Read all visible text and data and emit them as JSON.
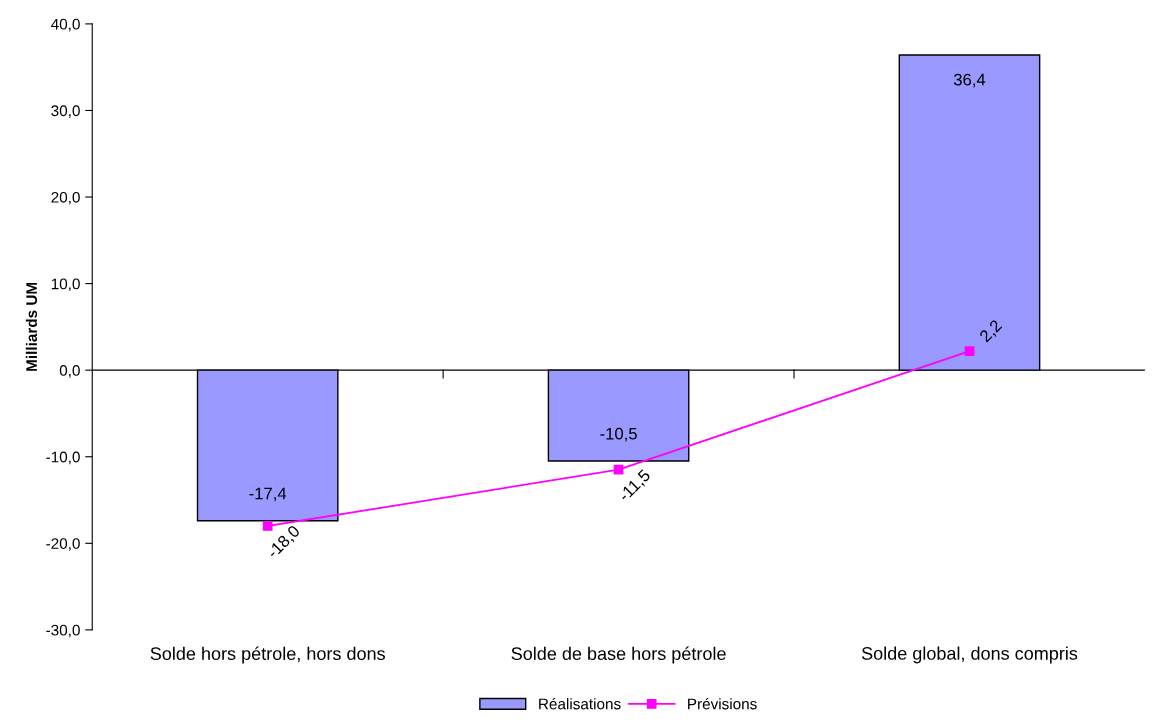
{
  "chart_data": {
    "type": "bar",
    "ylabel": "Milliards UM",
    "categories": [
      "Solde hors pétrole, hors dons",
      "Solde de base hors pétrole",
      "Solde global, dons compris"
    ],
    "series": [
      {
        "name": "Réalisations",
        "color": "#9999ff",
        "values": [
          -17.4,
          -10.5,
          36.4
        ],
        "value_labels": [
          "-17,4",
          "-10,5",
          "36,4"
        ]
      },
      {
        "name": "Prévisions",
        "type": "line",
        "color": "#ff00ff",
        "marker": "square",
        "values": [
          -18.0,
          -11.5,
          2.2
        ],
        "value_labels": [
          "-18,0",
          "-11,5",
          "2,2"
        ]
      }
    ],
    "ylim": [
      -30,
      40
    ],
    "yticks": [
      {
        "value": -30,
        "label": "-30,0"
      },
      {
        "value": -20,
        "label": "-20,0"
      },
      {
        "value": -10,
        "label": "-10,0"
      },
      {
        "value": 0,
        "label": "0,0"
      },
      {
        "value": 10,
        "label": "10,0"
      },
      {
        "value": 20,
        "label": "20,0"
      },
      {
        "value": 30,
        "label": "30,0"
      },
      {
        "value": 40,
        "label": "40,0"
      }
    ],
    "legend": "bottom"
  }
}
